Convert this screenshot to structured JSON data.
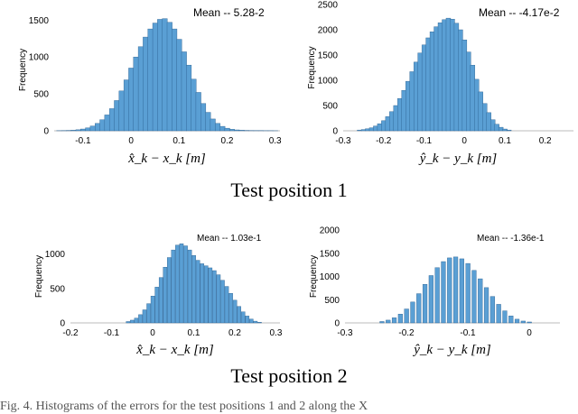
{
  "captions": [
    "Test position 1",
    "Test position 2"
  ],
  "figure_caption": "Fig. 4.   Histograms of the errors for the test positions 1 and 2 along the X",
  "chart_data": [
    {
      "type": "bar",
      "title": "",
      "mean_label": "Mean -- 5.28-2",
      "xlabel": "x̂_k − x_k [m]",
      "ylabel": "Frequency",
      "xlim": [
        -0.16,
        0.31
      ],
      "ylim": [
        0,
        1650
      ],
      "xticks": [
        -0.1,
        0,
        0.1,
        0.2,
        0.3
      ],
      "xtick_labels": [
        "-0.1",
        "0",
        "0.1",
        "0.2",
        "0.3"
      ],
      "yticks": [
        0,
        500,
        1000,
        1500
      ],
      "ytick_labels": [
        "0",
        "500",
        "1000",
        "1500"
      ],
      "bin_width": 0.01,
      "bin_centers": [
        -0.15,
        -0.14,
        -0.13,
        -0.12,
        -0.11,
        -0.1,
        -0.09,
        -0.08,
        -0.07,
        -0.06,
        -0.05,
        -0.04,
        -0.03,
        -0.02,
        -0.01,
        0,
        0.01,
        0.02,
        0.03,
        0.04,
        0.05,
        0.06,
        0.07,
        0.08,
        0.09,
        0.1,
        0.11,
        0.12,
        0.13,
        0.14,
        0.15,
        0.16,
        0.17,
        0.18,
        0.19,
        0.2,
        0.21,
        0.22,
        0.23,
        0.24,
        0.25,
        0.26,
        0.27,
        0.28,
        0.29,
        0.3
      ],
      "values": [
        2,
        3,
        5,
        8,
        14,
        24,
        40,
        65,
        100,
        150,
        215,
        300,
        410,
        540,
        690,
        850,
        1000,
        1140,
        1270,
        1380,
        1460,
        1510,
        1520,
        1470,
        1380,
        1240,
        1070,
        890,
        700,
        520,
        370,
        250,
        160,
        100,
        60,
        35,
        20,
        12,
        8,
        5,
        4,
        3,
        3,
        2,
        2,
        1
      ]
    },
    {
      "type": "bar",
      "title": "",
      "mean_label": "Mean --  -4.17e-2",
      "xlabel": "ŷ_k − y_k [m]",
      "ylabel": "Frequency",
      "xlim": [
        -0.3,
        0.27
      ],
      "ylim": [
        0,
        2500
      ],
      "xticks": [
        -0.3,
        -0.2,
        -0.1,
        0,
        0.1,
        0.2
      ],
      "xtick_labels": [
        "-0.3",
        "-0.2",
        "-0.1",
        "0",
        "0.1",
        "0.2"
      ],
      "yticks": [
        0,
        500,
        1000,
        1500,
        2000,
        2500
      ],
      "ytick_labels": [
        "0",
        "500",
        "1000",
        "1500",
        "2000",
        "2500"
      ],
      "bin_width": 0.0105,
      "bin_centers": [
        -0.26,
        -0.25,
        -0.24,
        -0.23,
        -0.22,
        -0.21,
        -0.2,
        -0.19,
        -0.18,
        -0.17,
        -0.16,
        -0.15,
        -0.14,
        -0.13,
        -0.12,
        -0.11,
        -0.1,
        -0.09,
        -0.08,
        -0.07,
        -0.06,
        -0.05,
        -0.04,
        -0.03,
        -0.02,
        -0.01,
        0,
        0.01,
        0.02,
        0.03,
        0.04,
        0.05,
        0.06,
        0.07,
        0.08,
        0.09,
        0.1,
        0.11
      ],
      "values": [
        15,
        25,
        40,
        60,
        95,
        140,
        200,
        280,
        380,
        500,
        640,
        800,
        980,
        1170,
        1360,
        1540,
        1700,
        1840,
        1960,
        2060,
        2140,
        2200,
        2230,
        2210,
        2130,
        2000,
        1800,
        1560,
        1300,
        1020,
        770,
        540,
        360,
        220,
        130,
        70,
        35,
        15
      ]
    },
    {
      "type": "bar",
      "title": "",
      "mean_label": "Mean -- 1.03e-1",
      "xlabel": "x̂_k − x_k [m]",
      "ylabel": "Frequency",
      "xlim": [
        -0.2,
        0.31
      ],
      "ylim": [
        0,
        1350
      ],
      "xticks": [
        -0.2,
        -0.1,
        0,
        0.1,
        0.2,
        0.3
      ],
      "xtick_labels": [
        "-0.2",
        "-0.1",
        "0",
        "0.1",
        "0.2",
        "0.3"
      ],
      "yticks": [
        0,
        500,
        1000
      ],
      "ytick_labels": [
        "0",
        "500",
        "1000"
      ],
      "bin_width": 0.0085,
      "bin_centers": [
        -0.06,
        -0.05,
        -0.04,
        -0.03,
        -0.02,
        -0.01,
        0,
        0.01,
        0.02,
        0.03,
        0.04,
        0.05,
        0.06,
        0.07,
        0.08,
        0.09,
        0.1,
        0.11,
        0.12,
        0.13,
        0.14,
        0.15,
        0.16,
        0.17,
        0.18,
        0.19,
        0.2,
        0.21,
        0.22,
        0.23,
        0.24,
        0.25,
        0.26
      ],
      "values": [
        20,
        40,
        70,
        120,
        190,
        280,
        390,
        520,
        660,
        810,
        950,
        1060,
        1130,
        1150,
        1120,
        1060,
        980,
        910,
        860,
        830,
        800,
        760,
        700,
        620,
        530,
        430,
        330,
        240,
        160,
        100,
        55,
        25,
        10
      ]
    },
    {
      "type": "bar",
      "title": "",
      "mean_label": "Mean --  -1.36e-1",
      "xlabel": "ŷ_k − y_k [m]",
      "ylabel": "Frequency",
      "xlim": [
        -0.3,
        0.05
      ],
      "ylim": [
        0,
        2000
      ],
      "xticks": [
        -0.3,
        -0.2,
        -0.1,
        0
      ],
      "xtick_labels": [
        "-0.3",
        "-0.2",
        "-0.1",
        "0"
      ],
      "yticks": [
        0,
        500,
        1000,
        1500,
        2000
      ],
      "ytick_labels": [
        "0",
        "500",
        "1000",
        "1500",
        "2000"
      ],
      "bin_width": 0.0066,
      "bin_centers": [
        -0.24,
        -0.23,
        -0.22,
        -0.21,
        -0.2,
        -0.19,
        -0.18,
        -0.17,
        -0.16,
        -0.15,
        -0.14,
        -0.13,
        -0.12,
        -0.11,
        -0.1,
        -0.09,
        -0.08,
        -0.07,
        -0.06,
        -0.05,
        -0.04,
        -0.03,
        -0.02,
        -0.01,
        0
      ],
      "values": [
        30,
        60,
        110,
        190,
        300,
        450,
        630,
        830,
        1020,
        1190,
        1320,
        1400,
        1420,
        1380,
        1280,
        1130,
        950,
        760,
        570,
        400,
        260,
        150,
        80,
        40,
        20
      ]
    }
  ]
}
